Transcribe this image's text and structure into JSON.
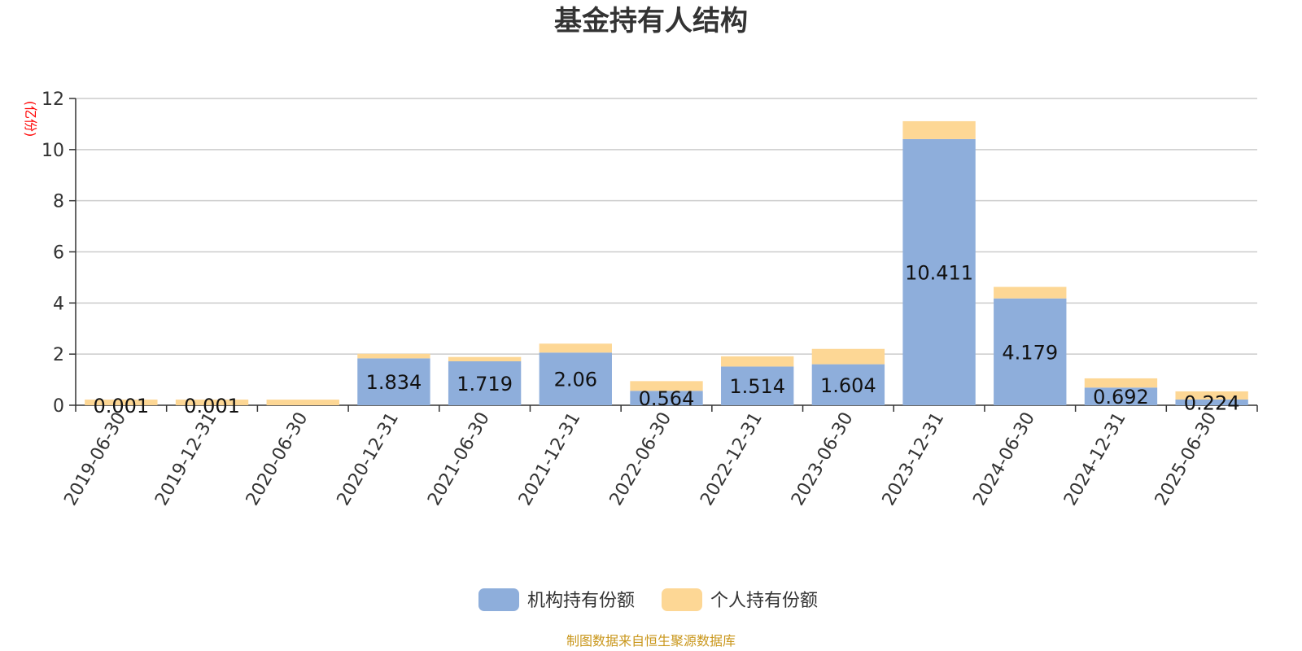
{
  "title": "基金持有人结构",
  "unit": "(亿份)",
  "source": "制图数据来自恒生聚源数据库",
  "colors": {
    "institutional": "#8eaedb",
    "individual": "#fdd795",
    "grid": "#cccccc",
    "axis": "#333333",
    "unit": "#ff0000",
    "source": "#c9961a"
  },
  "chart_data": {
    "type": "bar",
    "stacked": true,
    "title": "基金持有人结构",
    "ylabel": "(亿份)",
    "xlabel": "",
    "ylim": [
      0,
      12
    ],
    "yticks": [
      0,
      2,
      4,
      6,
      8,
      10,
      12
    ],
    "grid": true,
    "legend_position": "bottom",
    "categories": [
      "2019-06-30",
      "2019-12-31",
      "2020-06-30",
      "2020-12-31",
      "2021-06-30",
      "2021-12-31",
      "2022-06-30",
      "2022-12-31",
      "2023-06-30",
      "2023-12-31",
      "2024-06-30",
      "2024-12-31",
      "2025-06-30"
    ],
    "series": [
      {
        "name": "机构持有份额",
        "values": [
          0.001,
          0.001,
          0,
          1.834,
          1.719,
          2.06,
          0.564,
          1.514,
          1.604,
          10.411,
          4.179,
          0.692,
          0.224
        ],
        "labels": [
          "0.001",
          "0.001",
          "",
          "1.834",
          "1.719",
          "2.06",
          "0.564",
          "1.514",
          "1.604",
          "10.411",
          "4.179",
          "0.692",
          "0.224"
        ]
      },
      {
        "name": "个人持有份额",
        "values": [
          0.22,
          0.22,
          0.22,
          0.18,
          0.17,
          0.35,
          0.38,
          0.4,
          0.6,
          0.7,
          0.45,
          0.36,
          0.32
        ]
      }
    ]
  }
}
